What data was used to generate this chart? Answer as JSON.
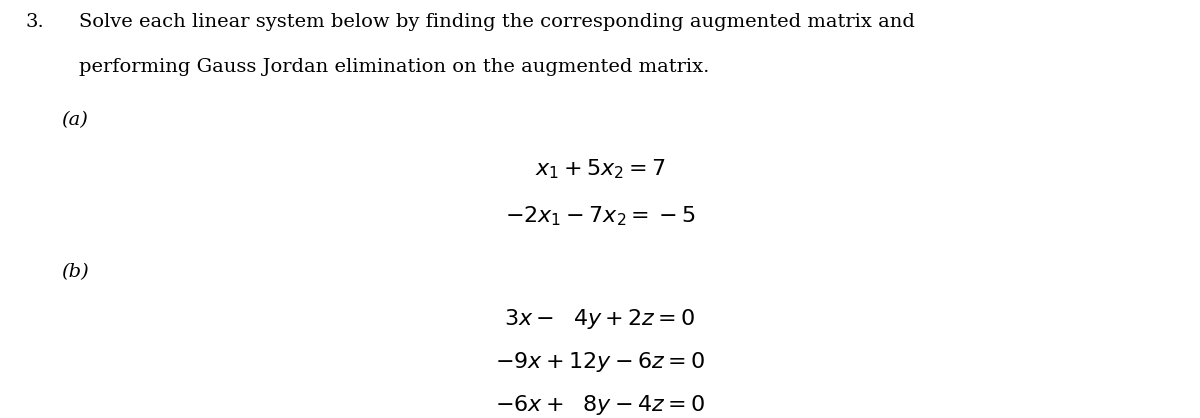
{
  "bg_color": "#ffffff",
  "text_color": "#000000",
  "fig_width": 12.0,
  "fig_height": 4.18,
  "dpi": 100,
  "problem_number": "3.",
  "problem_text_line1": "Solve each linear system below by finding the corresponding augmented matrix and",
  "problem_text_line2": "performing Gauss Jordan elimination on the augmented matrix.",
  "part_a_label": "(a)",
  "part_b_label": "(b)",
  "eq_a1": "$x_1 + 5x_2 = 7$",
  "eq_a2": "$-2x_1 - 7x_2 = -5$",
  "eq_b1": "$3x - \\ 4y + 2z = 0$",
  "eq_b2": "$-9x + 12y - 6z = 0$",
  "eq_b3": "$-6x + \\ 8y - 4z = 0$",
  "header_fontsize": 14,
  "label_fontsize": 14,
  "eq_fontsize": 16,
  "font_family": "serif"
}
